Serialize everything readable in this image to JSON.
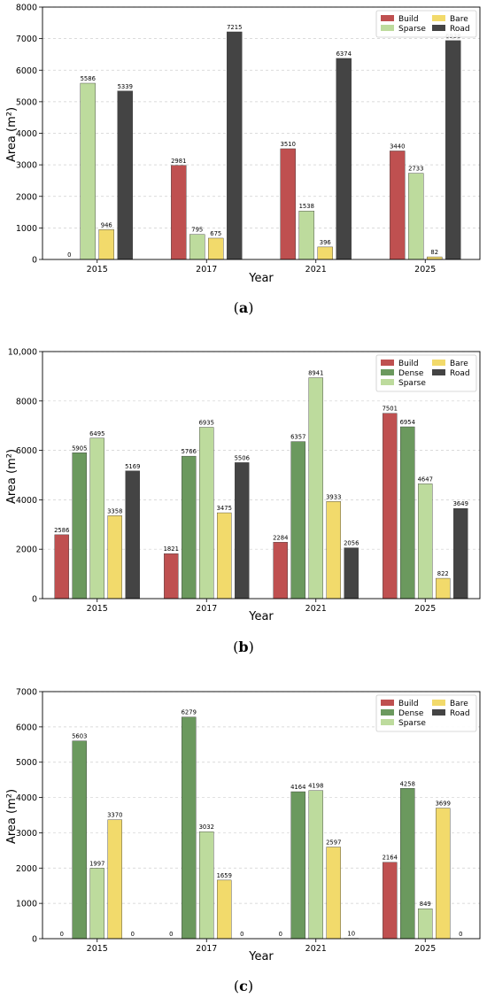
{
  "colors": {
    "Build": "#bf5050",
    "Dense": "#6b995e",
    "Sparse": "#bddb9d",
    "Bare": "#f2da6b",
    "Road": "#444444"
  },
  "captions": [
    "(a)",
    "(b)",
    "(c)"
  ],
  "caption_letters": [
    "a",
    "b",
    "c"
  ],
  "chart_data": [
    {
      "type": "bar",
      "title": "",
      "xlabel": "Year",
      "ylabel": "Area (m²)",
      "categories": [
        "2015",
        "2017",
        "2021",
        "2025"
      ],
      "ylim": [
        0,
        8000
      ],
      "yticks": [
        0,
        1000,
        2000,
        3000,
        4000,
        5000,
        6000,
        7000,
        8000
      ],
      "ytick_labels": [
        "0",
        "1000",
        "2000",
        "3000",
        "4000",
        "5000",
        "6000",
        "7000",
        "8000"
      ],
      "grid": "horizontal dashed",
      "legend": "top-right",
      "legend_entries": [
        "Build",
        "Sparse",
        "Bare",
        "Road"
      ],
      "series": [
        {
          "name": "Build",
          "values": [
            0,
            2981,
            3510,
            3440
          ]
        },
        {
          "name": "Sparse",
          "values": [
            5586,
            795,
            1538,
            2733
          ]
        },
        {
          "name": "Bare",
          "values": [
            946,
            675,
            396,
            82
          ]
        },
        {
          "name": "Road",
          "values": [
            5339,
            7215,
            6374,
            6938
          ]
        }
      ]
    },
    {
      "type": "bar",
      "title": "",
      "xlabel": "Year",
      "ylabel": "Area (m²)",
      "categories": [
        "2015",
        "2017",
        "2021",
        "2025"
      ],
      "ylim": [
        0,
        10000
      ],
      "yticks": [
        0,
        2000,
        4000,
        6000,
        8000,
        10000
      ],
      "ytick_labels": [
        "0",
        "2000",
        "4000",
        "6000",
        "8000",
        "10,000"
      ],
      "grid": "horizontal dashed",
      "legend": "top-right",
      "legend_entries": [
        "Build",
        "Dense",
        "Sparse",
        "Bare",
        "Road"
      ],
      "series": [
        {
          "name": "Build",
          "values": [
            2586,
            1821,
            2284,
            7501
          ]
        },
        {
          "name": "Dense",
          "values": [
            5905,
            5766,
            6357,
            6954
          ]
        },
        {
          "name": "Sparse",
          "values": [
            6495,
            6935,
            8941,
            4647
          ]
        },
        {
          "name": "Bare",
          "values": [
            3358,
            3475,
            3933,
            822
          ]
        },
        {
          "name": "Road",
          "values": [
            5169,
            5506,
            2056,
            3649
          ]
        }
      ]
    },
    {
      "type": "bar",
      "title": "",
      "xlabel": "Year",
      "ylabel": "Area (m²)",
      "categories": [
        "2015",
        "2017",
        "2021",
        "2025"
      ],
      "ylim": [
        0,
        7000
      ],
      "yticks": [
        0,
        1000,
        2000,
        3000,
        4000,
        5000,
        6000,
        7000
      ],
      "ytick_labels": [
        "0",
        "1000",
        "2000",
        "3000",
        "4000",
        "5000",
        "6000",
        "7000"
      ],
      "grid": "horizontal dashed",
      "legend": "top-right",
      "legend_entries": [
        "Build",
        "Dense",
        "Sparse",
        "Bare",
        "Road"
      ],
      "series": [
        {
          "name": "Build",
          "values": [
            0,
            0,
            0,
            2164
          ]
        },
        {
          "name": "Dense",
          "values": [
            5603,
            6279,
            4164,
            4258
          ]
        },
        {
          "name": "Sparse",
          "values": [
            1997,
            3032,
            4198,
            849
          ]
        },
        {
          "name": "Bare",
          "values": [
            3370,
            1659,
            2597,
            3699
          ]
        },
        {
          "name": "Road",
          "values": [
            0,
            0,
            10,
            0
          ]
        }
      ]
    }
  ]
}
